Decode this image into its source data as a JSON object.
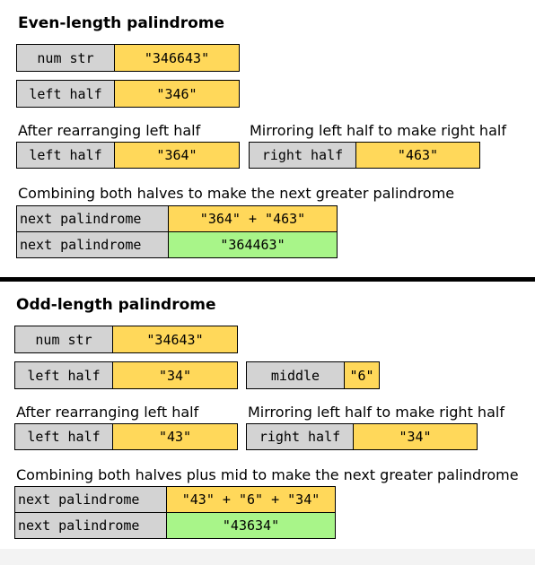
{
  "even": {
    "title": "Even-length palindrome",
    "num_str_label": "num str",
    "num_str_value": "\"346643\"",
    "left_half_label": "left half",
    "left_half_value": "\"346\"",
    "rearrange_caption": "After rearranging left half",
    "rearranged_label": "left half",
    "rearranged_value": "\"364\"",
    "mirror_caption": "Mirroring left half to make right half",
    "right_half_label": "right half",
    "right_half_value": "\"463\"",
    "combine_caption": "Combining both halves to make the next greater palindrome",
    "next_label_1": "next palindrome",
    "next_expr": "\"364\" + \"463\"",
    "next_label_2": "next palindrome",
    "next_result": "\"364463\""
  },
  "odd": {
    "title": "Odd-length palindrome",
    "num_str_label": "num str",
    "num_str_value": "\"34643\"",
    "left_half_label": "left half",
    "left_half_value": "\"34\"",
    "middle_label": "middle",
    "middle_value": "\"6\"",
    "rearrange_caption": "After rearranging left half",
    "rearranged_label": "left half",
    "rearranged_value": "\"43\"",
    "mirror_caption": "Mirroring left half to make right half",
    "right_half_label": "right half",
    "right_half_value": "\"34\"",
    "combine_caption": "Combining both halves plus mid to make the next greater palindrome",
    "next_label_1": "next palindrome",
    "next_expr": "\"43\" + \"6\" + \"34\"",
    "next_label_2": "next palindrome",
    "next_result": "\"43634\""
  },
  "colors": {
    "label_bg": "#d3d3d3",
    "value_bg": "#ffd85a",
    "result_bg": "#a8f589",
    "divider": "#000000"
  }
}
